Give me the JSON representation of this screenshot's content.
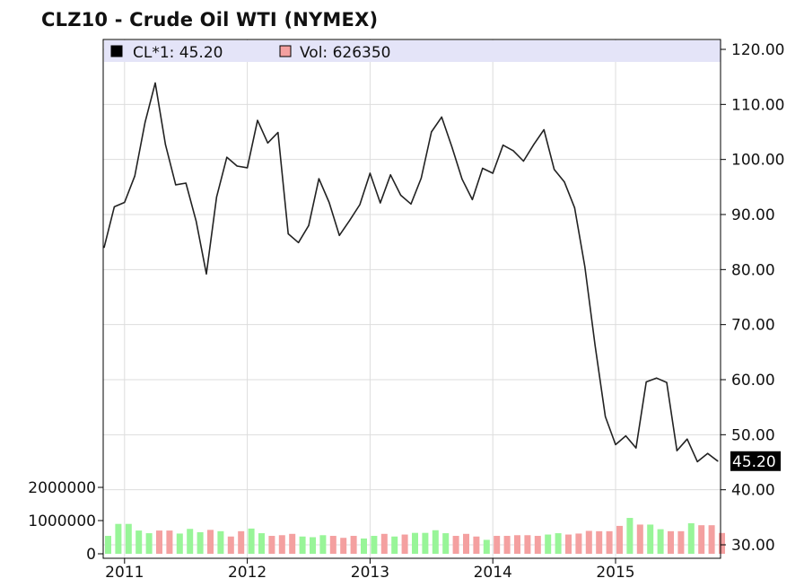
{
  "chart_data": {
    "type": "line",
    "title": "CLZ10 - Crude Oil WTI (NYMEX)",
    "legend": [
      {
        "name": "CL*1",
        "value": "45.20",
        "color": "#000000"
      },
      {
        "name": "Vol",
        "value": "626350",
        "color": "#f4a0a0"
      }
    ],
    "price_axis": {
      "ylim": [
        28.3,
        121.5
      ],
      "ticks": [
        "120.00",
        "110.00",
        "100.00",
        "90.00",
        "80.00",
        "70.00",
        "60.00",
        "50.00",
        "40.00",
        "30.00"
      ],
      "position": "right"
    },
    "volume_axis": {
      "ylim": [
        0,
        2000000
      ],
      "ticks": [
        "2000000",
        "1000000",
        "0"
      ],
      "position": "left"
    },
    "x_axis": {
      "ticks": [
        "2011",
        "2012",
        "2013",
        "2014",
        "2015"
      ]
    },
    "last_price_label": "45.20",
    "series": [
      {
        "name": "CL*1",
        "x": [
          "2010-11",
          "2010-12",
          "2011-01",
          "2011-02",
          "2011-03",
          "2011-04",
          "2011-05",
          "2011-06",
          "2011-07",
          "2011-08",
          "2011-09",
          "2011-10",
          "2011-11",
          "2011-12",
          "2012-01",
          "2012-02",
          "2012-03",
          "2012-04",
          "2012-05",
          "2012-06",
          "2012-07",
          "2012-08",
          "2012-09",
          "2012-10",
          "2012-11",
          "2012-12",
          "2013-01",
          "2013-02",
          "2013-03",
          "2013-04",
          "2013-05",
          "2013-06",
          "2013-07",
          "2013-08",
          "2013-09",
          "2013-10",
          "2013-11",
          "2013-12",
          "2014-01",
          "2014-02",
          "2014-03",
          "2014-04",
          "2014-05",
          "2014-06",
          "2014-07",
          "2014-08",
          "2014-09",
          "2014-10",
          "2014-11",
          "2014-12",
          "2015-01",
          "2015-02",
          "2015-03",
          "2015-04",
          "2015-05",
          "2015-06",
          "2015-07",
          "2015-08",
          "2015-09",
          "2015-10",
          "2015-11"
        ],
        "values": [
          84.0,
          91.4,
          92.2,
          97.0,
          106.7,
          113.9,
          102.7,
          95.4,
          95.7,
          88.8,
          79.2,
          93.2,
          100.4,
          98.8,
          98.5,
          107.1,
          103.0,
          104.9,
          86.5,
          84.9,
          88.0,
          96.5,
          92.2,
          86.2,
          88.9,
          91.8,
          97.5,
          92.1,
          97.2,
          93.5,
          91.9,
          96.6,
          105.0,
          107.7,
          102.3,
          96.4,
          92.7,
          98.4,
          97.5,
          102.6,
          101.6,
          99.7,
          102.7,
          105.4,
          98.2,
          95.9,
          91.2,
          80.5,
          66.2,
          53.3,
          48.2,
          49.8,
          47.6,
          59.6,
          60.3,
          59.5,
          47.1,
          49.2,
          45.1,
          46.6,
          45.2
        ]
      },
      {
        "name": "Vol",
        "type": "bar",
        "values": [
          540000,
          900000,
          900000,
          700000,
          620000,
          700000,
          700000,
          610000,
          750000,
          650000,
          720000,
          680000,
          520000,
          680000,
          760000,
          620000,
          540000,
          560000,
          600000,
          520000,
          500000,
          560000,
          540000,
          480000,
          540000,
          460000,
          540000,
          600000,
          520000,
          580000,
          630000,
          630000,
          710000,
          620000,
          540000,
          600000,
          520000,
          420000,
          540000,
          540000,
          560000,
          560000,
          540000,
          580000,
          620000,
          580000,
          610000,
          690000,
          680000,
          680000,
          840000,
          1080000,
          880000,
          880000,
          740000,
          680000,
          680000,
          920000,
          860000,
          860000,
          626350
        ],
        "up_color": "#98f598",
        "down_color": "#f4a0a0",
        "up": [
          true,
          true,
          true,
          true,
          true,
          false,
          false,
          true,
          true,
          true,
          false,
          true,
          false,
          false,
          true,
          true,
          false,
          false,
          false,
          true,
          true,
          true,
          false,
          false,
          false,
          true,
          true,
          false,
          true,
          false,
          true,
          true,
          true,
          true,
          false,
          false,
          false,
          true,
          false,
          false,
          false,
          false,
          false,
          true,
          true,
          false,
          false,
          false,
          false,
          false,
          false,
          true,
          false,
          true,
          true,
          false,
          false,
          true,
          false,
          false,
          false
        ]
      }
    ],
    "grid": true,
    "colors": {
      "plot_background": "#ffffff",
      "legend_band": "#e4e4f8",
      "grid": "#dddddd",
      "line": "#222222",
      "last_label_bg": "#000000",
      "last_label_fg": "#ffffff"
    }
  }
}
